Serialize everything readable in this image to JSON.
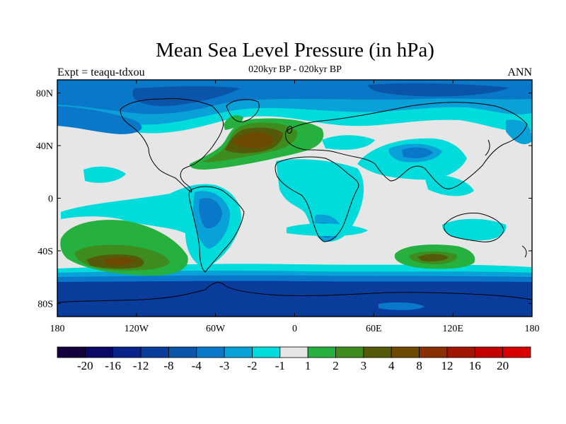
{
  "title": "Mean Sea Level Pressure (in hPa)",
  "subtitle": "020kyr BP - 020kyr BP",
  "left_label": "Expt = teaqu-tdxou",
  "right_label": "ANN",
  "chart_data": {
    "type": "heatmap",
    "projection": "cylindrical-equidistant",
    "variable": "Mean Sea Level Pressure difference",
    "units": "hPa",
    "season": "ANN",
    "xlim": [
      -180,
      180
    ],
    "ylim": [
      -90,
      90
    ],
    "x_ticks": [
      {
        "value": -180,
        "label": "180"
      },
      {
        "value": -120,
        "label": "120W"
      },
      {
        "value": -60,
        "label": "60W"
      },
      {
        "value": 0,
        "label": "0"
      },
      {
        "value": 60,
        "label": "60E"
      },
      {
        "value": 120,
        "label": "120E"
      },
      {
        "value": 180,
        "label": "180"
      }
    ],
    "y_ticks": [
      {
        "value": 80,
        "label": "80N"
      },
      {
        "value": 40,
        "label": "40N"
      },
      {
        "value": 0,
        "label": "0"
      },
      {
        "value": -40,
        "label": "40S"
      },
      {
        "value": -80,
        "label": "80S"
      }
    ],
    "colorbar": {
      "levels": [
        "-20",
        "-16",
        "-12",
        "-8",
        "-4",
        "-3",
        "-2",
        "-1",
        "1",
        "2",
        "3",
        "4",
        "8",
        "12",
        "16",
        "20"
      ],
      "colors": [
        "#14003c",
        "#0a0a66",
        "#0a238c",
        "#0a3c9c",
        "#0a55aa",
        "#0a78c8",
        "#0aa0d8",
        "#00dcdc",
        "#e6e6e6",
        "#25b040",
        "#3f8c1e",
        "#555a0a",
        "#6e4a00",
        "#8a3000",
        "#a01500",
        "#c40000",
        "#d80000"
      ]
    },
    "fields": [
      {
        "name": "high-lat-south",
        "category": "-8",
        "lon": [
          -180,
          180
        ],
        "lat": [
          -90,
          -62
        ]
      },
      {
        "name": "southern-ocean-ring",
        "category": "-4",
        "lon": [
          -180,
          180
        ],
        "lat": [
          -62,
          -57
        ]
      },
      {
        "name": "southern-ocean-ring-outer",
        "category": "-2",
        "lon": [
          -180,
          180
        ],
        "lat": [
          -57,
          -52
        ]
      },
      {
        "name": "antarctic-interior",
        "category": "-1",
        "lon": [
          -50,
          80
        ],
        "lat": [
          -90,
          -80
        ]
      },
      {
        "name": "arctic",
        "category": "-4",
        "lon": [
          -180,
          180
        ],
        "lat": [
          70,
          90
        ]
      },
      {
        "name": "north-pacific-low",
        "category": "-3",
        "lon": [
          -180,
          -120
        ],
        "lat": [
          40,
          70
        ]
      },
      {
        "name": "north-atlantic-high",
        "category": "4",
        "lon": [
          -50,
          -5
        ],
        "lat": [
          35,
          55
        ]
      },
      {
        "name": "south-pacific-high",
        "category": "3",
        "lon": [
          -170,
          -90
        ],
        "lat": [
          -55,
          -15
        ]
      },
      {
        "name": "south-pacific-core",
        "category": "4",
        "lon": [
          -150,
          -130
        ],
        "lat": [
          -50,
          -42
        ]
      },
      {
        "name": "south-indian-high",
        "category": "3",
        "lon": [
          75,
          135
        ],
        "lat": [
          -50,
          -35
        ]
      },
      {
        "name": "south-america-low",
        "category": "-3",
        "lon": [
          -75,
          -45
        ],
        "lat": [
          -20,
          0
        ]
      },
      {
        "name": "africa-low",
        "category": "-2",
        "lon": [
          10,
          40
        ],
        "lat": [
          -30,
          0
        ]
      },
      {
        "name": "asia-low",
        "category": "-2",
        "lon": [
          70,
          110
        ],
        "lat": [
          25,
          45
        ]
      },
      {
        "name": "australia-low",
        "category": "-1",
        "lon": [
          115,
          150
        ],
        "lat": [
          -35,
          -15
        ]
      }
    ]
  }
}
